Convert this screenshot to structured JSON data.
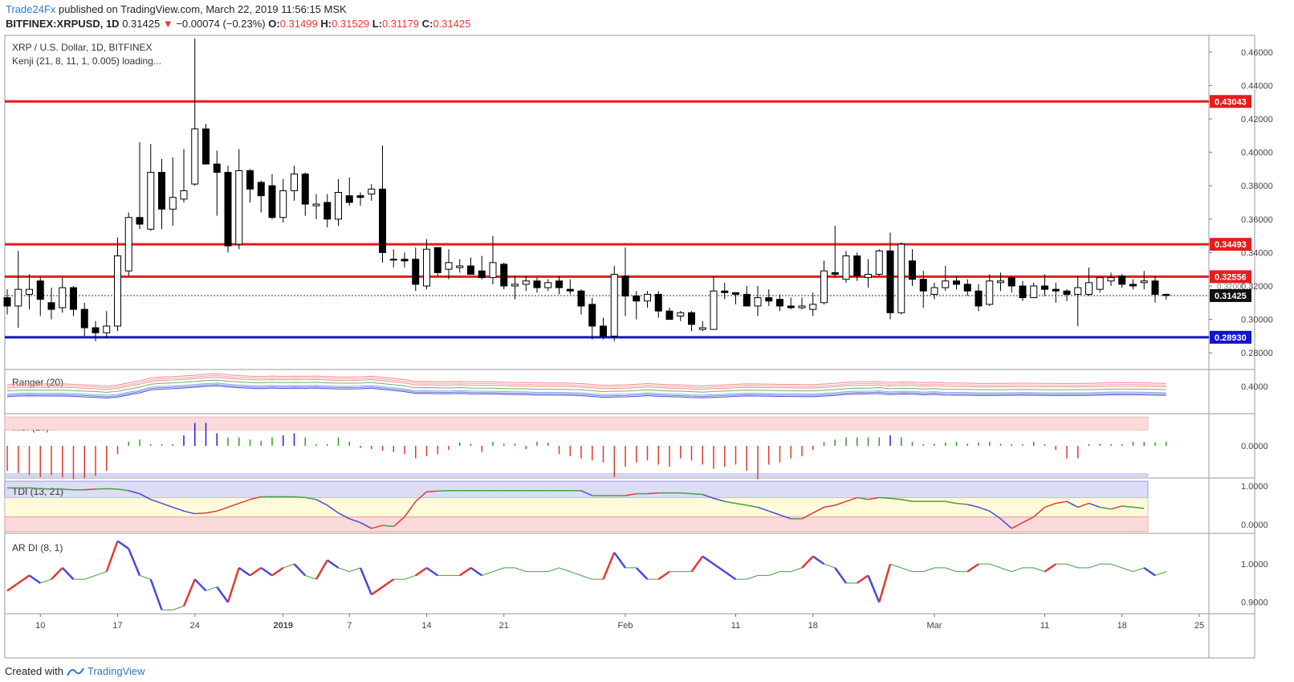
{
  "header": {
    "brand": "Trade24Fx",
    "published": " published on TradingView.com, March 22, 2019 11:56:15 MSK",
    "symbol": "BITFINEX:XRPUSD, 1D",
    "last": "0.31425",
    "change_arrow": "▼",
    "change": "−0.00074 (−0.23%)",
    "o_label": "O:",
    "o": "0.31499",
    "h_label": "H:",
    "h": "0.31529",
    "l_label": "L:",
    "l": "0.31179",
    "c_label": "C:",
    "c": "0.31425"
  },
  "legend": {
    "title": "XRP / U.S. Dollar, 1D, BITFINEX",
    "indicator": "Kenji (21, 8, 11, 1, 0.005) loading..."
  },
  "footer": {
    "created": "Created with",
    "logo_text": "TradingView"
  },
  "colors": {
    "up": "#ffffff",
    "down": "#000000",
    "resistance": "#e31d1d",
    "support": "#1414c8",
    "axis": "#555555"
  },
  "chart_data": [
    {
      "type": "candlestick",
      "name": "XRP / U.S. Dollar, 1D, BITFINEX",
      "ylim": [
        0.27,
        0.47
      ],
      "y_ticks": [
        "0.28000",
        "0.30000",
        "0.32000",
        "0.34000",
        "0.36000",
        "0.38000",
        "0.40000",
        "0.42000",
        "0.44000",
        "0.46000"
      ],
      "x_labels": [
        {
          "i": 3,
          "text": "10"
        },
        {
          "i": 10,
          "text": "17"
        },
        {
          "i": 17,
          "text": "24"
        },
        {
          "i": 25,
          "text": "2019"
        },
        {
          "i": 31,
          "text": "7"
        },
        {
          "i": 38,
          "text": "14"
        },
        {
          "i": 45,
          "text": "21"
        },
        {
          "i": 56,
          "text": "Feb"
        },
        {
          "i": 66,
          "text": "11"
        },
        {
          "i": 73,
          "text": "18"
        },
        {
          "i": 84,
          "text": "Mar"
        },
        {
          "i": 94,
          "text": "11"
        },
        {
          "i": 101,
          "text": "18"
        },
        {
          "i": 108,
          "text": "25"
        }
      ],
      "candles": [
        [
          0.313,
          0.318,
          0.303,
          0.308
        ],
        [
          0.308,
          0.341,
          0.295,
          0.318
        ],
        [
          0.315,
          0.327,
          0.306,
          0.318
        ],
        [
          0.323,
          0.325,
          0.302,
          0.312
        ],
        [
          0.31,
          0.319,
          0.3,
          0.306
        ],
        [
          0.307,
          0.325,
          0.304,
          0.319
        ],
        [
          0.319,
          0.32,
          0.302,
          0.306
        ],
        [
          0.306,
          0.31,
          0.29,
          0.295
        ],
        [
          0.295,
          0.299,
          0.287,
          0.292
        ],
        [
          0.292,
          0.305,
          0.289,
          0.296
        ],
        [
          0.296,
          0.349,
          0.293,
          0.338
        ],
        [
          0.329,
          0.364,
          0.326,
          0.361
        ],
        [
          0.361,
          0.406,
          0.354,
          0.357
        ],
        [
          0.354,
          0.405,
          0.353,
          0.388
        ],
        [
          0.388,
          0.396,
          0.354,
          0.366
        ],
        [
          0.366,
          0.397,
          0.356,
          0.373
        ],
        [
          0.372,
          0.402,
          0.37,
          0.377
        ],
        [
          0.381,
          0.468,
          0.38,
          0.414
        ],
        [
          0.414,
          0.417,
          0.394,
          0.393
        ],
        [
          0.393,
          0.401,
          0.362,
          0.388
        ],
        [
          0.388,
          0.392,
          0.34,
          0.344
        ],
        [
          0.345,
          0.402,
          0.342,
          0.389
        ],
        [
          0.389,
          0.39,
          0.37,
          0.378
        ],
        [
          0.382,
          0.383,
          0.364,
          0.374
        ],
        [
          0.38,
          0.387,
          0.36,
          0.361
        ],
        [
          0.361,
          0.384,
          0.358,
          0.377
        ],
        [
          0.377,
          0.392,
          0.371,
          0.387
        ],
        [
          0.387,
          0.388,
          0.362,
          0.369
        ],
        [
          0.368,
          0.375,
          0.36,
          0.369
        ],
        [
          0.37,
          0.375,
          0.355,
          0.36
        ],
        [
          0.36,
          0.384,
          0.356,
          0.376
        ],
        [
          0.374,
          0.385,
          0.368,
          0.37
        ],
        [
          0.374,
          0.376,
          0.368,
          0.373
        ],
        [
          0.375,
          0.381,
          0.371,
          0.378
        ],
        [
          0.378,
          0.404,
          0.334,
          0.34
        ],
        [
          0.336,
          0.342,
          0.331,
          0.336
        ],
        [
          0.336,
          0.34,
          0.331,
          0.335
        ],
        [
          0.336,
          0.343,
          0.317,
          0.321
        ],
        [
          0.32,
          0.348,
          0.318,
          0.342
        ],
        [
          0.343,
          0.343,
          0.326,
          0.328
        ],
        [
          0.33,
          0.342,
          0.324,
          0.334
        ],
        [
          0.331,
          0.336,
          0.328,
          0.332
        ],
        [
          0.332,
          0.337,
          0.327,
          0.327
        ],
        [
          0.329,
          0.338,
          0.324,
          0.325
        ],
        [
          0.325,
          0.35,
          0.321,
          0.334
        ],
        [
          0.333,
          0.334,
          0.318,
          0.32
        ],
        [
          0.32,
          0.326,
          0.312,
          0.321
        ],
        [
          0.321,
          0.326,
          0.317,
          0.323
        ],
        [
          0.323,
          0.325,
          0.316,
          0.319
        ],
        [
          0.319,
          0.324,
          0.317,
          0.322
        ],
        [
          0.323,
          0.326,
          0.315,
          0.319
        ],
        [
          0.318,
          0.324,
          0.315,
          0.317
        ],
        [
          0.317,
          0.318,
          0.303,
          0.308
        ],
        [
          0.309,
          0.313,
          0.288,
          0.296
        ],
        [
          0.296,
          0.301,
          0.288,
          0.29
        ],
        [
          0.29,
          0.332,
          0.287,
          0.327
        ],
        [
          0.326,
          0.343,
          0.302,
          0.314
        ],
        [
          0.314,
          0.317,
          0.3,
          0.311
        ],
        [
          0.311,
          0.317,
          0.307,
          0.315
        ],
        [
          0.315,
          0.317,
          0.301,
          0.305
        ],
        [
          0.305,
          0.307,
          0.3,
          0.3
        ],
        [
          0.302,
          0.305,
          0.299,
          0.304
        ],
        [
          0.304,
          0.305,
          0.293,
          0.297
        ],
        [
          0.294,
          0.299,
          0.293,
          0.295
        ],
        [
          0.294,
          0.326,
          0.294,
          0.317
        ],
        [
          0.317,
          0.322,
          0.312,
          0.316
        ],
        [
          0.316,
          0.316,
          0.309,
          0.315
        ],
        [
          0.315,
          0.32,
          0.309,
          0.308
        ],
        [
          0.308,
          0.32,
          0.302,
          0.313
        ],
        [
          0.313,
          0.318,
          0.308,
          0.311
        ],
        [
          0.312,
          0.315,
          0.305,
          0.308
        ],
        [
          0.308,
          0.313,
          0.306,
          0.307
        ],
        [
          0.307,
          0.313,
          0.306,
          0.308
        ],
        [
          0.306,
          0.316,
          0.302,
          0.309
        ],
        [
          0.31,
          0.335,
          0.309,
          0.329
        ],
        [
          0.328,
          0.356,
          0.325,
          0.327
        ],
        [
          0.324,
          0.341,
          0.322,
          0.338
        ],
        [
          0.338,
          0.34,
          0.323,
          0.326
        ],
        [
          0.325,
          0.336,
          0.319,
          0.327
        ],
        [
          0.327,
          0.342,
          0.326,
          0.341
        ],
        [
          0.341,
          0.352,
          0.3,
          0.304
        ],
        [
          0.304,
          0.346,
          0.303,
          0.345
        ],
        [
          0.335,
          0.342,
          0.32,
          0.324
        ],
        [
          0.324,
          0.329,
          0.307,
          0.317
        ],
        [
          0.315,
          0.322,
          0.312,
          0.319
        ],
        [
          0.319,
          0.332,
          0.317,
          0.323
        ],
        [
          0.323,
          0.326,
          0.318,
          0.321
        ],
        [
          0.321,
          0.324,
          0.314,
          0.317
        ],
        [
          0.317,
          0.321,
          0.305,
          0.308
        ],
        [
          0.309,
          0.327,
          0.308,
          0.323
        ],
        [
          0.322,
          0.328,
          0.317,
          0.323
        ],
        [
          0.325,
          0.326,
          0.316,
          0.32
        ],
        [
          0.32,
          0.323,
          0.311,
          0.313
        ],
        [
          0.313,
          0.322,
          0.313,
          0.32
        ],
        [
          0.32,
          0.327,
          0.314,
          0.318
        ],
        [
          0.318,
          0.322,
          0.31,
          0.317
        ],
        [
          0.317,
          0.318,
          0.311,
          0.315
        ],
        [
          0.315,
          0.326,
          0.296,
          0.319
        ],
        [
          0.315,
          0.331,
          0.314,
          0.322
        ],
        [
          0.318,
          0.325,
          0.316,
          0.325
        ],
        [
          0.323,
          0.328,
          0.32,
          0.325
        ],
        [
          0.326,
          0.327,
          0.319,
          0.321
        ],
        [
          0.321,
          0.324,
          0.318,
          0.32
        ],
        [
          0.322,
          0.329,
          0.318,
          0.323
        ],
        [
          0.323,
          0.326,
          0.31,
          0.315
        ],
        [
          0.315,
          0.3153,
          0.3118,
          0.3143
        ]
      ],
      "levels": [
        {
          "value": 0.43043,
          "label": "0.43043",
          "kind": "resistance"
        },
        {
          "value": 0.34493,
          "label": "0.34493",
          "kind": "resistance"
        },
        {
          "value": 0.32556,
          "label": "0.32556",
          "kind": "resistance"
        },
        {
          "value": 0.2893,
          "label": "0.28930",
          "kind": "support"
        }
      ],
      "last_price": {
        "value": 0.31425,
        "label": "0.31425"
      },
      "aux_label": {
        "value": 0.32,
        "label": "0.32000"
      }
    },
    {
      "type": "line",
      "name": "Ranger (20)",
      "ylim": [
        0.24,
        0.5
      ],
      "y_ticks": [
        "0.4000"
      ],
      "series_note": "envelope bands around price"
    },
    {
      "type": "bar",
      "name": "MSI (10)",
      "y_ticks": [
        "0.0000"
      ],
      "values": [
        -0.6,
        -0.65,
        -0.7,
        -0.75,
        -0.7,
        -0.75,
        -0.8,
        -0.78,
        -0.72,
        -0.6,
        -0.2,
        0.1,
        0.15,
        0,
        0,
        0,
        0.25,
        0.55,
        0.55,
        0.3,
        0.2,
        0.2,
        0.15,
        0.12,
        0.2,
        0.25,
        0.3,
        0.2,
        0,
        0,
        0.2,
        0.1,
        -0.05,
        -0.08,
        -0.12,
        -0.15,
        -0.2,
        -0.3,
        -0.25,
        -0.2,
        -0.1,
        0.08,
        0.05,
        -0.15,
        0.1,
        0.05,
        0.05,
        -0.08,
        0.1,
        0.08,
        -0.2,
        -0.25,
        -0.3,
        -0.35,
        -0.4,
        -0.75,
        -0.5,
        -0.4,
        -0.35,
        -0.45,
        -0.5,
        -0.3,
        -0.35,
        -0.45,
        -0.55,
        -0.5,
        -0.45,
        -0.6,
        -0.8,
        -0.45,
        -0.4,
        -0.3,
        -0.25,
        -0.1,
        0.1,
        0.15,
        0.2,
        0.2,
        0.2,
        0.2,
        0.25,
        0.2,
        0.1,
        0,
        0.05,
        0.08,
        0.1,
        0.05,
        0.08,
        0.1,
        0.05,
        0,
        0,
        0.1,
        0,
        -0.1,
        -0.3,
        -0.3,
        0,
        0.05,
        0,
        0,
        0.1,
        0.1,
        0.08,
        0.1
      ],
      "zones": {
        "upper": 0.65,
        "lower": -0.65
      }
    },
    {
      "type": "line",
      "name": "TDI (13, 21)",
      "y_ticks": [
        "1.0000",
        "0.0000"
      ],
      "zones": {
        "upper": 0.7,
        "lower": 0.2
      },
      "values": [
        0.95,
        0.95,
        0.95,
        0.93,
        0.92,
        0.92,
        0.9,
        0.9,
        0.92,
        0.93,
        0.92,
        0.88,
        0.8,
        0.65,
        0.55,
        0.45,
        0.35,
        0.28,
        0.3,
        0.35,
        0.45,
        0.55,
        0.65,
        0.72,
        0.72,
        0.72,
        0.72,
        0.7,
        0.65,
        0.5,
        0.3,
        0.15,
        0.05,
        -0.1,
        -0.02,
        -0.05,
        0.2,
        0.6,
        0.85,
        0.87,
        0.88,
        0.88,
        0.88,
        0.88,
        0.88,
        0.88,
        0.88,
        0.88,
        0.88,
        0.88,
        0.88,
        0.88,
        0.88,
        0.75,
        0.75,
        0.75,
        0.75,
        0.8,
        0.8,
        0.82,
        0.82,
        0.82,
        0.8,
        0.78,
        0.68,
        0.6,
        0.55,
        0.5,
        0.45,
        0.35,
        0.25,
        0.15,
        0.15,
        0.3,
        0.45,
        0.5,
        0.6,
        0.7,
        0.65,
        0.7,
        0.68,
        0.65,
        0.6,
        0.6,
        0.6,
        0.6,
        0.55,
        0.52,
        0.45,
        0.35,
        0.15,
        -0.1,
        0.05,
        0.2,
        0.45,
        0.55,
        0.6,
        0.45,
        0.55,
        0.45,
        0.4,
        0.48,
        0.45,
        0.42
      ]
    },
    {
      "type": "line",
      "name": "AR DI (8, 1)",
      "ylim": [
        0.87,
        1.08
      ],
      "y_ticks": [
        "1.0000",
        "0.9000"
      ],
      "values": [
        0.93,
        0.95,
        0.97,
        0.95,
        0.96,
        0.99,
        0.96,
        0.96,
        0.97,
        0.98,
        1.06,
        1.04,
        0.97,
        0.96,
        0.88,
        0.88,
        0.89,
        0.96,
        0.93,
        0.94,
        0.9,
        0.99,
        0.97,
        0.99,
        0.97,
        0.99,
        1.0,
        0.97,
        0.96,
        1.01,
        0.99,
        0.98,
        0.99,
        0.92,
        0.94,
        0.96,
        0.96,
        0.97,
        0.99,
        0.97,
        0.97,
        0.97,
        0.99,
        0.97,
        0.98,
        0.99,
        0.99,
        0.98,
        0.98,
        0.98,
        0.99,
        0.98,
        0.97,
        0.96,
        0.96,
        1.03,
        0.99,
        0.99,
        0.96,
        0.96,
        0.98,
        0.98,
        0.98,
        1.02,
        1.0,
        0.98,
        0.96,
        0.96,
        0.97,
        0.97,
        0.98,
        0.98,
        0.99,
        1.02,
        1.0,
        0.99,
        0.95,
        0.95,
        0.97,
        0.9,
        1.0,
        0.99,
        0.98,
        0.98,
        0.99,
        0.99,
        0.98,
        0.98,
        1.0,
        1.0,
        0.99,
        0.98,
        0.99,
        0.99,
        0.98,
        1.0,
        1.0,
        0.99,
        0.99,
        1.0,
        1.0,
        0.99,
        0.98,
        0.99,
        0.97,
        0.98
      ]
    }
  ]
}
